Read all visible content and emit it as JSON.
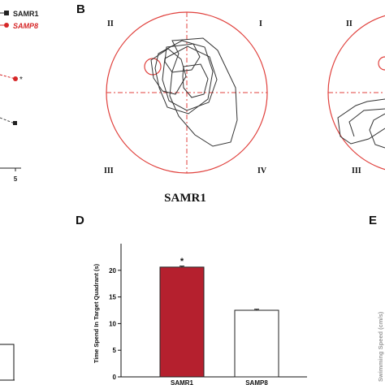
{
  "panels": {
    "a": {
      "legend": [
        {
          "name": "SAMR1",
          "color": "#222222"
        },
        {
          "name": "SAMP8",
          "color": "#d62728"
        }
      ],
      "x_tick": "5",
      "star": "*"
    },
    "b": {
      "letter": "B",
      "quadrants": [
        "II",
        "I",
        "III",
        "IV"
      ],
      "caption": "SAMR1",
      "path_color": "#333333",
      "pool_color": "#e0403c"
    },
    "c": {
      "quadrants": [
        "II",
        "III"
      ]
    },
    "d": {
      "letter": "D",
      "ylabel": "Time Spend In Target Quadrant (s)",
      "star": "*"
    },
    "e": {
      "letter": "E",
      "ylabel_fragment": "Swimming Speed (cm/s)"
    }
  },
  "chart_data": [
    {
      "panel": "D",
      "type": "bar",
      "title": "",
      "xlabel": "",
      "ylabel": "Time Spend In Target Quadrant (s)",
      "categories": [
        "SAMR1",
        "SAMP8"
      ],
      "values": [
        20.6,
        12.5
      ],
      "errors": [
        0.2,
        0.2
      ],
      "colors": [
        "#b5202e",
        "#ffffff"
      ],
      "ylim": [
        0,
        25
      ],
      "yticks": [
        0,
        5,
        10,
        15,
        20
      ],
      "significance": [
        "*",
        ""
      ]
    },
    {
      "panel": "A",
      "type": "line",
      "title": "",
      "x_visible": [
        "5"
      ],
      "series": [
        {
          "name": "SAMR1",
          "color": "#222222",
          "last_value_rel": 0.62
        },
        {
          "name": "SAMP8",
          "color": "#d62728",
          "last_value_rel": 0.36
        }
      ]
    }
  ]
}
